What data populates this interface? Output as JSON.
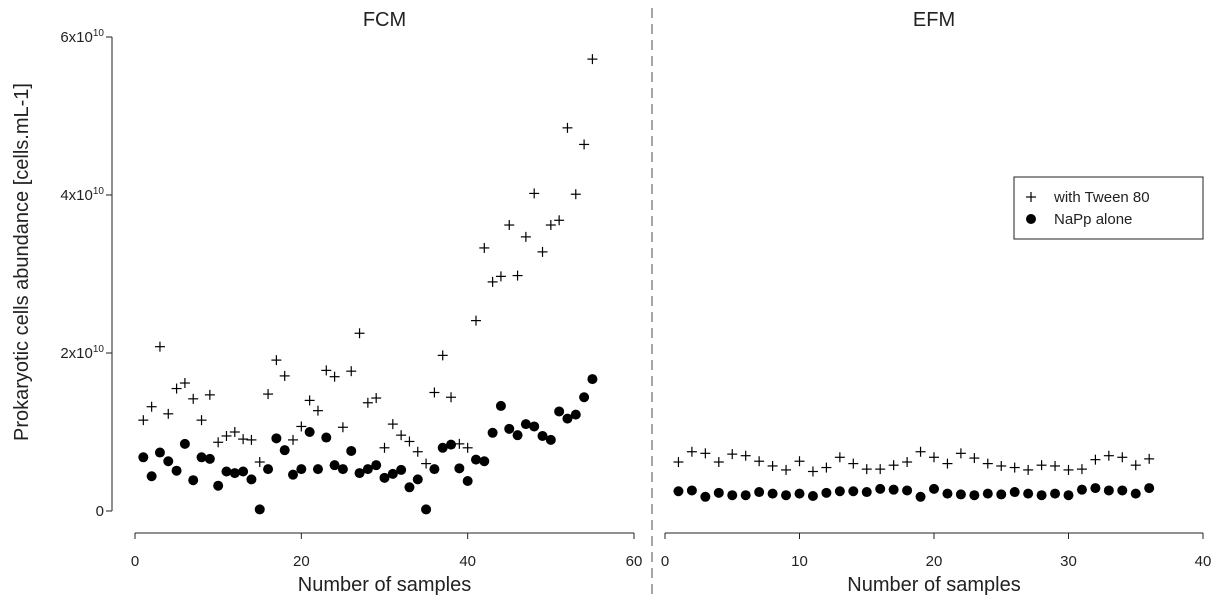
{
  "chart_data": [
    {
      "type": "scatter",
      "title": "FCM",
      "xlabel": "Number of samples",
      "ylabel": "Prokaryotic cells abundance [cells.mL-1]",
      "xlim": [
        0,
        60
      ],
      "ylim": [
        0,
        60000000000.0
      ],
      "xticks": [
        "0",
        "20",
        "40",
        "60"
      ],
      "yticks": [
        {
          "value": 0,
          "mant": "0",
          "exp": ""
        },
        {
          "value": 20000000000.0,
          "mant": "2x10",
          "exp": "10"
        },
        {
          "value": 40000000000.0,
          "mant": "4x10",
          "exp": "10"
        },
        {
          "value": 60000000000.0,
          "mant": "6x10",
          "exp": "10"
        }
      ],
      "series": [
        {
          "name": "with Tween 80",
          "marker": "plus",
          "x": [
            1,
            2,
            3,
            4,
            5,
            6,
            7,
            8,
            9,
            10,
            11,
            12,
            13,
            14,
            15,
            16,
            17,
            18,
            19,
            20,
            21,
            22,
            23,
            24,
            25,
            26,
            27,
            28,
            29,
            30,
            31,
            32,
            33,
            34,
            35,
            36,
            37,
            38,
            39,
            40,
            41,
            42,
            43,
            44,
            45,
            46,
            47,
            48,
            49,
            50,
            51,
            52,
            53,
            54,
            55
          ],
          "y": [
            11500000000.0,
            13200000000.0,
            20800000000.0,
            12300000000.0,
            15500000000.0,
            16200000000.0,
            14200000000.0,
            11500000000.0,
            14700000000.0,
            8700000000.0,
            9500000000.0,
            10000000000.0,
            9100000000.0,
            9000000000.0,
            6200000000.0,
            14800000000.0,
            19100000000.0,
            17100000000.0,
            9000000000.0,
            10700000000.0,
            14000000000.0,
            12700000000.0,
            17800000000.0,
            17000000000.0,
            10600000000.0,
            17700000000.0,
            22500000000.0,
            13700000000.0,
            14300000000.0,
            8000000000.0,
            11000000000.0,
            9600000000.0,
            8800000000.0,
            7500000000.0,
            6000000000.0,
            15000000000.0,
            19700000000.0,
            14400000000.0,
            8500000000.0,
            8000000000.0,
            24100000000.0,
            33300000000.0,
            29000000000.0,
            29700000000.0,
            36200000000.0,
            29800000000.0,
            34700000000.0,
            40200000000.0,
            32800000000.0,
            36200000000.0,
            36800000000.0,
            48500000000.0,
            40100000000.0,
            46400000000.0,
            57200000000.0
          ]
        },
        {
          "name": "NaPp alone",
          "marker": "dot",
          "x": [
            1,
            2,
            3,
            4,
            5,
            6,
            7,
            8,
            9,
            10,
            11,
            12,
            13,
            14,
            15,
            16,
            17,
            18,
            19,
            20,
            21,
            22,
            23,
            24,
            25,
            26,
            27,
            28,
            29,
            30,
            31,
            32,
            33,
            34,
            35,
            36,
            37,
            38,
            39,
            40,
            41,
            42,
            43,
            44,
            45,
            46,
            47,
            48,
            49,
            50,
            51,
            52,
            53,
            54,
            55
          ],
          "y": [
            6800000000.0,
            4400000000.0,
            7400000000.0,
            6300000000.0,
            5100000000.0,
            8500000000.0,
            3900000000.0,
            6800000000.0,
            6600000000.0,
            3200000000.0,
            5000000000.0,
            4800000000.0,
            5000000000.0,
            4000000000.0,
            200000000.0,
            5300000000.0,
            9200000000.0,
            7700000000.0,
            4600000000.0,
            5300000000.0,
            10000000000.0,
            5300000000.0,
            9300000000.0,
            5800000000.0,
            5300000000.0,
            7600000000.0,
            4800000000.0,
            5300000000.0,
            5800000000.0,
            4200000000.0,
            4700000000.0,
            5200000000.0,
            3000000000.0,
            4000000000.0,
            200000000.0,
            5300000000.0,
            8000000000.0,
            8400000000.0,
            5400000000.0,
            3800000000.0,
            6500000000.0,
            6300000000.0,
            9900000000.0,
            13300000000.0,
            10400000000.0,
            9600000000.0,
            11000000000.0,
            10700000000.0,
            9500000000.0,
            9000000000.0,
            12600000000.0,
            11700000000.0,
            12200000000.0,
            14400000000.0,
            16700000000.0
          ]
        }
      ]
    },
    {
      "type": "scatter",
      "title": "EFM",
      "xlabel": "Number of samples",
      "xlim": [
        0,
        40
      ],
      "ylim": [
        0,
        60000000000.0
      ],
      "xticks": [
        "0",
        "10",
        "20",
        "30",
        "40"
      ],
      "legend": {
        "placement": "top-right"
      },
      "series": [
        {
          "name": "with Tween 80",
          "marker": "plus",
          "x": [
            1,
            2,
            3,
            4,
            5,
            6,
            7,
            8,
            9,
            10,
            11,
            12,
            13,
            14,
            15,
            16,
            17,
            18,
            19,
            20,
            21,
            22,
            23,
            24,
            25,
            26,
            27,
            28,
            29,
            30,
            31,
            32,
            33,
            34,
            35,
            36
          ],
          "y": [
            6200000000.0,
            7500000000.0,
            7300000000.0,
            6200000000.0,
            7200000000.0,
            7000000000.0,
            6300000000.0,
            5700000000.0,
            5200000000.0,
            6300000000.0,
            5000000000.0,
            5500000000.0,
            6800000000.0,
            6000000000.0,
            5300000000.0,
            5300000000.0,
            5800000000.0,
            6200000000.0,
            7500000000.0,
            6800000000.0,
            6000000000.0,
            7300000000.0,
            6700000000.0,
            6000000000.0,
            5700000000.0,
            5500000000.0,
            5200000000.0,
            5800000000.0,
            5700000000.0,
            5200000000.0,
            5300000000.0,
            6500000000.0,
            7000000000.0,
            6800000000.0,
            5800000000.0,
            6600000000.0
          ]
        },
        {
          "name": "NaPp alone",
          "marker": "dot",
          "x": [
            1,
            2,
            3,
            4,
            5,
            6,
            7,
            8,
            9,
            10,
            11,
            12,
            13,
            14,
            15,
            16,
            17,
            18,
            19,
            20,
            21,
            22,
            23,
            24,
            25,
            26,
            27,
            28,
            29,
            30,
            31,
            32,
            33,
            34,
            35,
            36
          ],
          "y": [
            2500000000.0,
            2600000000.0,
            1800000000.0,
            2300000000.0,
            2000000000.0,
            2000000000.0,
            2400000000.0,
            2200000000.0,
            2000000000.0,
            2200000000.0,
            1900000000.0,
            2300000000.0,
            2500000000.0,
            2500000000.0,
            2400000000.0,
            2800000000.0,
            2700000000.0,
            2600000000.0,
            1800000000.0,
            2800000000.0,
            2200000000.0,
            2100000000.0,
            2000000000.0,
            2200000000.0,
            2100000000.0,
            2400000000.0,
            2200000000.0,
            2000000000.0,
            2200000000.0,
            2000000000.0,
            2700000000.0,
            2900000000.0,
            2600000000.0,
            2600000000.0,
            2200000000.0,
            2900000000.0
          ]
        }
      ]
    }
  ],
  "colors": {
    "marker": "#000000",
    "axis": "#222222",
    "divider": "#888888"
  }
}
